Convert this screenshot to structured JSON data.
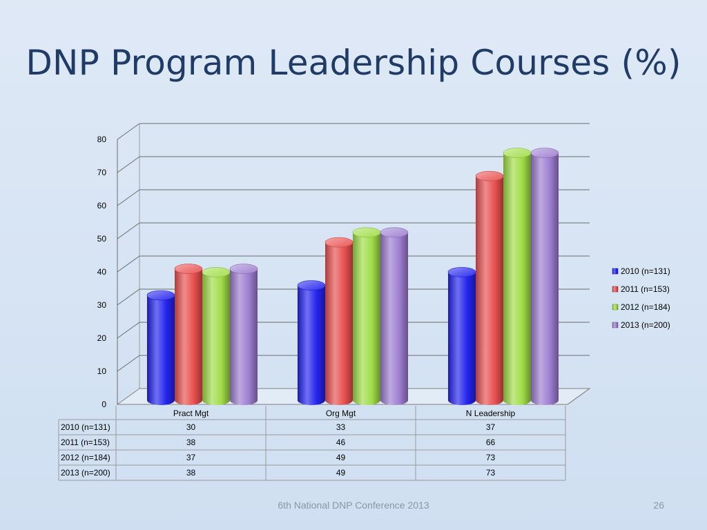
{
  "title": "DNP Program Leadership Courses (%)",
  "footer": "6th National DNP Conference  2013",
  "page_number": "26",
  "chart_data": {
    "type": "bar",
    "title": "DNP Program Leadership Courses (%)",
    "categories": [
      "Pract Mgt",
      "Org Mgt",
      "N Leadership"
    ],
    "series": [
      {
        "name": "2010 (n=131)",
        "values": [
          30,
          33,
          37
        ],
        "color": "#2323ee"
      },
      {
        "name": "2011 (n=153)",
        "values": [
          38,
          46,
          66
        ],
        "color": "#e84f4f"
      },
      {
        "name": "2012 (n=184)",
        "values": [
          37,
          49,
          73
        ],
        "color": "#9fdc46"
      },
      {
        "name": "2013 (n=200)",
        "values": [
          38,
          49,
          73
        ],
        "color": "#9d7cd0"
      }
    ],
    "yticks": [
      0,
      10,
      20,
      30,
      40,
      50,
      60,
      70,
      80
    ],
    "ylim": [
      0,
      80
    ],
    "grid": true,
    "legend": "right",
    "data_table": true,
    "style": "3d-cylinder"
  }
}
